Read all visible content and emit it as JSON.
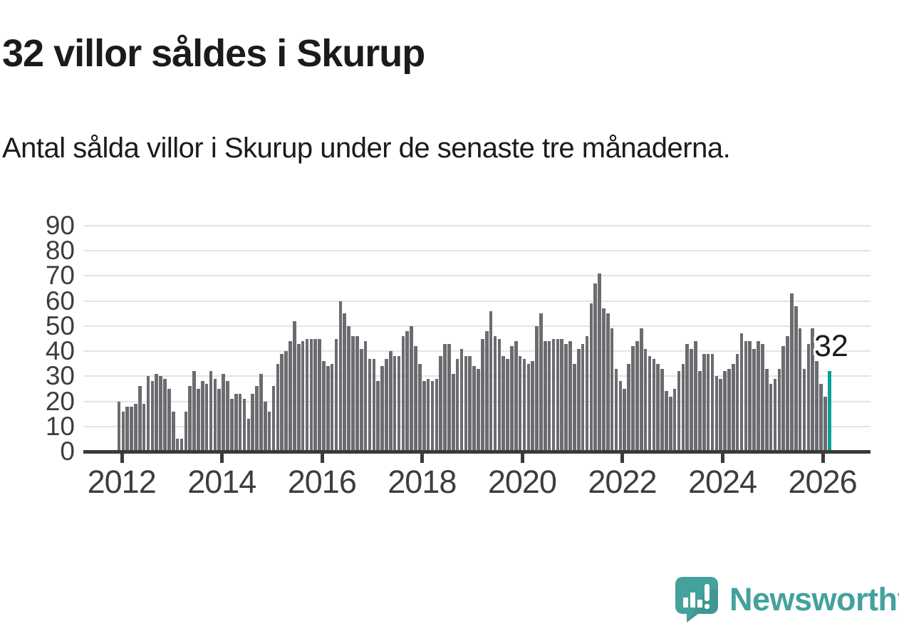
{
  "title": "32 villor såldes i Skurup",
  "subtitle": "Antal sålda villor i Skurup under de senaste tre månaderna.",
  "annotation": {
    "label": "32"
  },
  "logo": {
    "text": "Newsworthy"
  },
  "colors": {
    "bar": "#6b6b70",
    "highlight": "#08a29a",
    "grid": "#e4e4e4",
    "axis": "#3b3b3b",
    "text": "#1b1b1b",
    "tick_text": "#3d3d3d",
    "logo_teal": "#45a19c",
    "logo_shade": "#3a908c"
  },
  "chart_data": {
    "type": "bar",
    "title": "32 villor såldes i Skurup",
    "subtitle": "Antal sålda villor i Skurup under de senaste tre månaderna.",
    "frequency": "monthly",
    "x_start": "2012-01",
    "x_end": "2026-03",
    "ylim": [
      0,
      90
    ],
    "grid": "horizontal",
    "y_ticks": [
      0,
      10,
      20,
      30,
      40,
      50,
      60,
      70,
      80,
      90
    ],
    "x_tick_labels": [
      "2012",
      "2014",
      "2016",
      "2018",
      "2020",
      "2022",
      "2024",
      "2026"
    ],
    "highlight_index": 170,
    "highlight_value": 32,
    "values": [
      20,
      16,
      18,
      18,
      19,
      26,
      19,
      30,
      28,
      31,
      30,
      29,
      25,
      16,
      5,
      5,
      16,
      26,
      32,
      25,
      28,
      27,
      32,
      29,
      25,
      31,
      28,
      21,
      23,
      23,
      21,
      13,
      23,
      26,
      31,
      20,
      16,
      26,
      35,
      39,
      40,
      44,
      52,
      43,
      44,
      45,
      45,
      45,
      45,
      36,
      34,
      35,
      45,
      60,
      55,
      50,
      46,
      46,
      41,
      44,
      37,
      37,
      28,
      34,
      37,
      40,
      38,
      38,
      46,
      48,
      50,
      42,
      35,
      28,
      29,
      28,
      29,
      38,
      43,
      43,
      31,
      37,
      41,
      38,
      38,
      34,
      33,
      45,
      48,
      56,
      46,
      45,
      38,
      37,
      42,
      44,
      38,
      37,
      35,
      36,
      50,
      55,
      44,
      44,
      45,
      45,
      45,
      43,
      44,
      35,
      41,
      43,
      46,
      59,
      67,
      71,
      57,
      55,
      49,
      33,
      28,
      25,
      35,
      42,
      44,
      49,
      41,
      38,
      37,
      35,
      33,
      24,
      22,
      25,
      32,
      35,
      43,
      41,
      44,
      32,
      39,
      39,
      39,
      30,
      29,
      32,
      33,
      35,
      39,
      47,
      44,
      44,
      41,
      44,
      43,
      33,
      27,
      29,
      33,
      42,
      46,
      63,
      58,
      49,
      33,
      43,
      49,
      36,
      27,
      22,
      32
    ]
  }
}
